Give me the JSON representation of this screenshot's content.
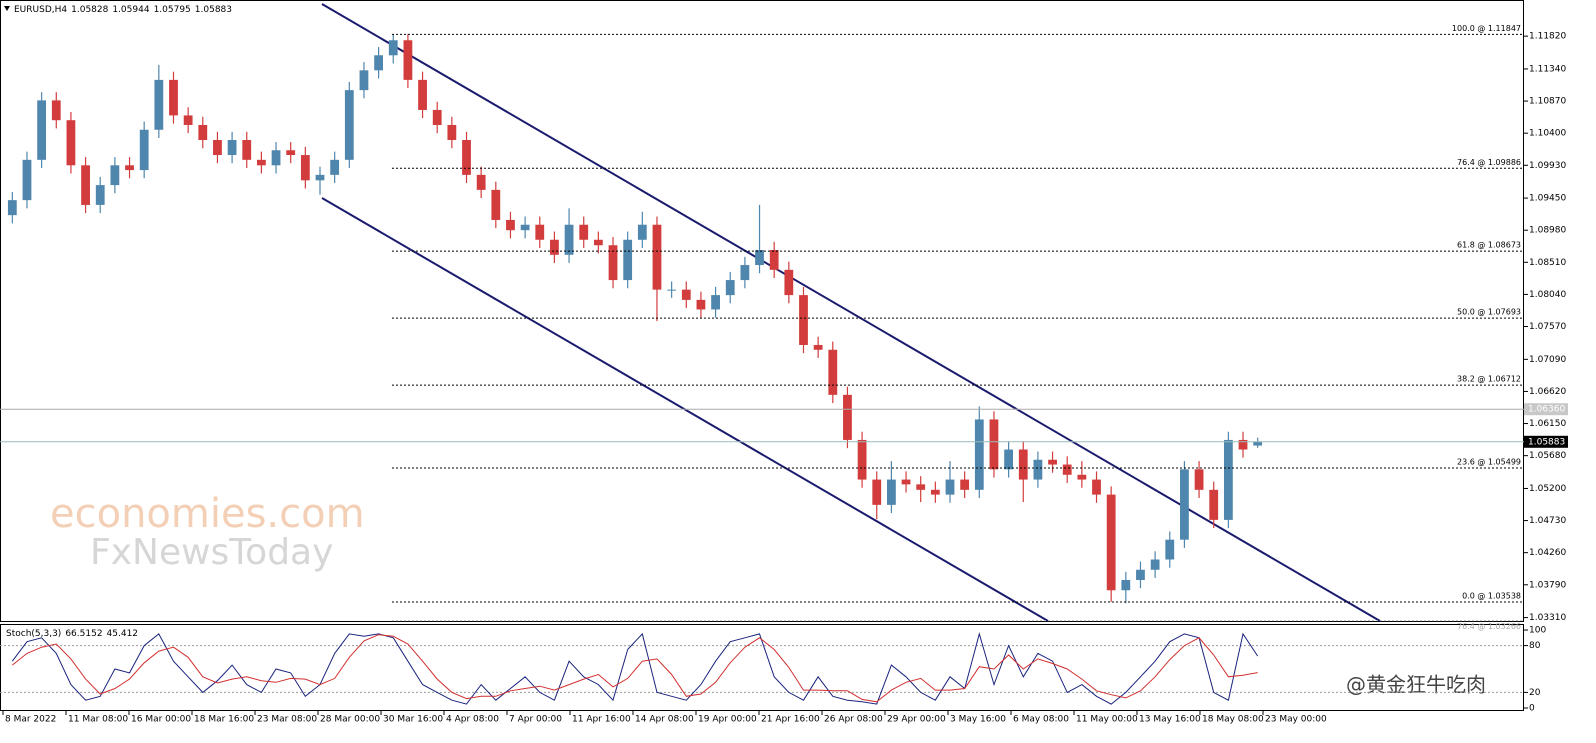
{
  "chart_data": {
    "type": "candlestick",
    "title": "EURUSD,H4",
    "header_values": [
      1.05828,
      1.05944,
      1.05795,
      1.05883
    ],
    "up_color": "#4f86ad",
    "down_color": "#d23c3c",
    "ylim": [
      1.0326,
      1.1232
    ],
    "yticks": [
      {
        "value": 1.1182,
        "label": "1.11820"
      },
      {
        "value": 1.1134,
        "label": "1.11340"
      },
      {
        "value": 1.1087,
        "label": "1.10870"
      },
      {
        "value": 1.104,
        "label": "1.10400"
      },
      {
        "value": 1.0993,
        "label": "1.09930"
      },
      {
        "value": 1.0945,
        "label": "1.09450"
      },
      {
        "value": 1.0898,
        "label": "1.08980"
      },
      {
        "value": 1.0851,
        "label": "1.08510"
      },
      {
        "value": 1.0804,
        "label": "1.08040"
      },
      {
        "value": 1.0757,
        "label": "1.07570"
      },
      {
        "value": 1.0709,
        "label": "1.07090"
      },
      {
        "value": 1.0662,
        "label": "1.06620"
      },
      {
        "value": 1.0615,
        "label": "1.06150"
      },
      {
        "value": 1.0568,
        "label": "1.05680"
      },
      {
        "value": 1.052,
        "label": "1.05200"
      },
      {
        "value": 1.0473,
        "label": "1.04730"
      },
      {
        "value": 1.0426,
        "label": "1.04260"
      },
      {
        "value": 1.0379,
        "label": "1.03790"
      },
      {
        "value": 1.0331,
        "label": "1.03310"
      }
    ],
    "fib_levels": [
      {
        "value": 1.11847,
        "label": "100.0 @ 1.11847"
      },
      {
        "value": 1.09886,
        "label": "76.4 @ 1.09886"
      },
      {
        "value": 1.08673,
        "label": "61.8 @ 1.08673"
      },
      {
        "value": 1.07693,
        "label": "50.0 @ 1.07693"
      },
      {
        "value": 1.06712,
        "label": "38.2 @ 1.06712"
      },
      {
        "value": 1.05499,
        "label": "23.6 @ 1.05499"
      },
      {
        "value": 1.03538,
        "label": "0.0 @ 1.03538"
      },
      {
        "value": 1.03266,
        "label": "76.4 @ 1.03266",
        "muted": true
      }
    ],
    "price_lines": [
      {
        "value": 1.0636,
        "label": "1.06360"
      },
      {
        "value": 1.05883,
        "label": "1.05883",
        "current": true
      }
    ],
    "x_labels": [
      "8 Mar 2022",
      "11 Mar 08:00",
      "16 Mar 00:00",
      "18 Mar 16:00",
      "23 Mar 08:00",
      "28 Mar 00:00",
      "30 Mar 16:00",
      "4 Apr 08:00",
      "7 Apr 00:00",
      "11 Apr 16:00",
      "14 Apr 08:00",
      "19 Apr 00:00",
      "21 Apr 16:00",
      "26 Apr 08:00",
      "29 Apr 00:00",
      "3 May 16:00",
      "6 May 08:00",
      "11 May 00:00",
      "13 May 16:00",
      "18 May 08:00",
      "23 May 00:00"
    ],
    "ohlc": [
      [
        1.092,
        1.0954,
        1.0908,
        1.0942
      ],
      [
        1.0942,
        1.1013,
        1.093,
        1.1001
      ],
      [
        1.1001,
        1.11,
        1.0989,
        1.1088
      ],
      [
        1.1088,
        1.11,
        1.1047,
        1.1059
      ],
      [
        1.1059,
        1.1071,
        1.0981,
        1.0993
      ],
      [
        1.0993,
        1.1005,
        1.0923,
        1.0935
      ],
      [
        1.0935,
        1.0976,
        1.0923,
        1.0964
      ],
      [
        1.0964,
        1.1005,
        1.0952,
        1.0993
      ],
      [
        1.0993,
        1.1005,
        1.0974,
        1.0986
      ],
      [
        1.0986,
        1.1057,
        1.0974,
        1.1045
      ],
      [
        1.1045,
        1.114,
        1.1033,
        1.1118
      ],
      [
        1.1118,
        1.113,
        1.1054,
        1.1066
      ],
      [
        1.1066,
        1.1078,
        1.104,
        1.1052
      ],
      [
        1.1052,
        1.1064,
        1.1018,
        1.103
      ],
      [
        1.103,
        1.1042,
        1.0996,
        1.1008
      ],
      [
        1.1008,
        1.1042,
        1.0996,
        1.103
      ],
      [
        1.103,
        1.1042,
        1.0989,
        1.1001
      ],
      [
        1.1001,
        1.1013,
        1.0981,
        1.0993
      ],
      [
        1.0993,
        1.1027,
        1.0981,
        1.1015
      ],
      [
        1.1015,
        1.1027,
        1.0996,
        1.1008
      ],
      [
        1.1008,
        1.102,
        1.0959,
        1.0971
      ],
      [
        1.0971,
        1.0991,
        1.095,
        1.0979
      ],
      [
        1.0979,
        1.1013,
        1.0967,
        1.1001
      ],
      [
        1.1001,
        1.1115,
        1.0989,
        1.1103
      ],
      [
        1.1103,
        1.1144,
        1.1091,
        1.1132
      ],
      [
        1.1132,
        1.1166,
        1.112,
        1.1154
      ],
      [
        1.1154,
        1.1185,
        1.1142,
        1.1176
      ],
      [
        1.1176,
        1.1185,
        1.1106,
        1.1118
      ],
      [
        1.1118,
        1.113,
        1.1062,
        1.1074
      ],
      [
        1.1074,
        1.1086,
        1.104,
        1.1052
      ],
      [
        1.1052,
        1.1064,
        1.1018,
        1.103
      ],
      [
        1.103,
        1.1042,
        1.0967,
        1.0979
      ],
      [
        1.0979,
        1.0991,
        1.0945,
        1.0957
      ],
      [
        1.0957,
        1.0969,
        1.0901,
        1.0913
      ],
      [
        1.0913,
        1.0925,
        1.0886,
        1.0898
      ],
      [
        1.0898,
        1.0918,
        1.0886,
        1.0906
      ],
      [
        1.0906,
        1.0918,
        1.0872,
        1.0884
      ],
      [
        1.0884,
        1.0896,
        1.085,
        1.0862
      ],
      [
        1.0862,
        1.093,
        1.085,
        1.0906
      ],
      [
        1.0906,
        1.0918,
        1.0872,
        1.0884
      ],
      [
        1.0884,
        1.0896,
        1.0864,
        1.0876
      ],
      [
        1.0876,
        1.0888,
        1.0813,
        1.0825
      ],
      [
        1.0825,
        1.0896,
        1.0813,
        1.0884
      ],
      [
        1.0884,
        1.0925,
        1.0872,
        1.0906
      ],
      [
        1.0906,
        1.0918,
        1.0765,
        1.0811
      ],
      [
        1.0811,
        1.0823,
        1.0799,
        1.0811
      ],
      [
        1.0811,
        1.0823,
        1.0784,
        1.0796
      ],
      [
        1.0796,
        1.0808,
        1.077,
        1.0782
      ],
      [
        1.0782,
        1.0815,
        1.077,
        1.0803
      ],
      [
        1.0803,
        1.0837,
        1.0791,
        1.0825
      ],
      [
        1.0825,
        1.0859,
        1.0813,
        1.0847
      ],
      [
        1.0847,
        1.0935,
        1.0835,
        1.0869
      ],
      [
        1.0869,
        1.0881,
        1.0828,
        1.084
      ],
      [
        1.084,
        1.0852,
        1.0791,
        1.0803
      ],
      [
        1.0803,
        1.0815,
        1.0718,
        1.073
      ],
      [
        1.073,
        1.0742,
        1.0711,
        1.0723
      ],
      [
        1.0723,
        1.0735,
        1.0645,
        1.0657
      ],
      [
        1.0657,
        1.0669,
        1.0579,
        1.0591
      ],
      [
        1.0591,
        1.0603,
        1.0521,
        1.0533
      ],
      [
        1.0533,
        1.0545,
        1.0475,
        1.0496
      ],
      [
        1.0496,
        1.056,
        1.0484,
        1.0533
      ],
      [
        1.0533,
        1.0545,
        1.0514,
        1.0526
      ],
      [
        1.0526,
        1.0538,
        1.05,
        1.0518
      ],
      [
        1.0518,
        1.053,
        1.0499,
        1.0511
      ],
      [
        1.0511,
        1.056,
        1.0499,
        1.0533
      ],
      [
        1.0533,
        1.0545,
        1.0506,
        1.0518
      ],
      [
        1.0518,
        1.064,
        1.0506,
        1.0621
      ],
      [
        1.0621,
        1.0633,
        1.0536,
        1.0548
      ],
      [
        1.0548,
        1.0589,
        1.0536,
        1.0577
      ],
      [
        1.0577,
        1.0589,
        1.05,
        1.0533
      ],
      [
        1.0533,
        1.0574,
        1.0521,
        1.0562
      ],
      [
        1.0562,
        1.0574,
        1.0543,
        1.0555
      ],
      [
        1.0555,
        1.0567,
        1.0528,
        1.054
      ],
      [
        1.054,
        1.056,
        1.0521,
        1.0533
      ],
      [
        1.0533,
        1.0545,
        1.0499,
        1.0511
      ],
      [
        1.0511,
        1.0523,
        1.0354,
        1.0371
      ],
      [
        1.0371,
        1.0398,
        1.0352,
        1.0386
      ],
      [
        1.0386,
        1.0413,
        1.0374,
        1.0401
      ],
      [
        1.0401,
        1.0428,
        1.0389,
        1.0416
      ],
      [
        1.0416,
        1.0457,
        1.0404,
        1.0445
      ],
      [
        1.0445,
        1.056,
        1.0433,
        1.0548
      ],
      [
        1.0548,
        1.056,
        1.0506,
        1.0518
      ],
      [
        1.0518,
        1.053,
        1.0462,
        1.0474
      ],
      [
        1.0474,
        1.0603,
        1.0462,
        1.0591
      ],
      [
        1.0591,
        1.0603,
        1.0565,
        1.0577
      ],
      [
        1.05828,
        1.05944,
        1.05795,
        1.05883
      ]
    ],
    "oscillator": {
      "title": "Stoch(5,3,3)",
      "header_values": [
        66.5152,
        45.412
      ],
      "ylim": [
        0,
        100
      ],
      "yticks": [
        100,
        80,
        20,
        0
      ],
      "levels": [
        80,
        20
      ],
      "series": [
        {
          "color": "#1a237e",
          "values": [
            60,
            85,
            90,
            70,
            30,
            10,
            15,
            50,
            45,
            80,
            95,
            60,
            40,
            20,
            35,
            55,
            30,
            20,
            50,
            45,
            15,
            30,
            70,
            95,
            92,
            95,
            90,
            60,
            30,
            20,
            10,
            5,
            30,
            10,
            25,
            40,
            20,
            10,
            60,
            40,
            30,
            10,
            75,
            95,
            20,
            15,
            10,
            30,
            60,
            85,
            90,
            95,
            40,
            20,
            10,
            40,
            15,
            10,
            8,
            5,
            55,
            40,
            20,
            10,
            40,
            25,
            95,
            30,
            80,
            40,
            70,
            60,
            20,
            30,
            15,
            5,
            20,
            40,
            60,
            85,
            95,
            90,
            20,
            10,
            95,
            66.5152
          ]
        },
        {
          "color": "#d32f2f",
          "values": [
            55,
            70,
            78,
            82,
            63,
            37,
            18,
            25,
            37,
            58,
            73,
            78,
            65,
            40,
            32,
            37,
            40,
            35,
            33,
            38,
            37,
            30,
            38,
            65,
            86,
            94,
            92,
            82,
            60,
            37,
            20,
            12,
            15,
            15,
            22,
            25,
            28,
            23,
            30,
            37,
            43,
            27,
            38,
            60,
            63,
            43,
            15,
            18,
            33,
            58,
            78,
            90,
            75,
            52,
            23,
            23,
            22,
            22,
            11,
            8,
            23,
            33,
            38,
            23,
            23,
            25,
            53,
            50,
            68,
            50,
            63,
            57,
            50,
            37,
            22,
            17,
            13,
            22,
            40,
            62,
            80,
            90,
            68,
            40,
            42,
            45.412
          ]
        }
      ]
    },
    "watermark": [
      "economies.com",
      "FxNewsToday"
    ],
    "credit": "@黄金狂牛吃肉"
  }
}
